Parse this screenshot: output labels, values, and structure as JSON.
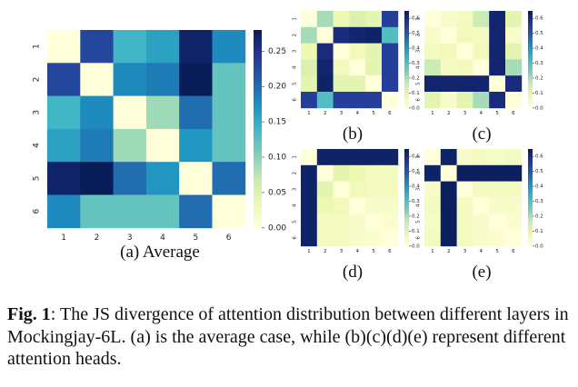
{
  "chart_data": [
    {
      "id": "a",
      "type": "heatmap",
      "title": "(a) Average",
      "rows": [
        "1",
        "2",
        "3",
        "4",
        "5",
        "6"
      ],
      "cols": [
        "1",
        "2",
        "3",
        "4",
        "5",
        "6"
      ],
      "values": [
        [
          0.0,
          0.23,
          0.14,
          0.16,
          0.27,
          0.18
        ],
        [
          0.23,
          0.0,
          0.18,
          0.19,
          0.28,
          0.12
        ],
        [
          0.14,
          0.18,
          0.0,
          0.09,
          0.2,
          0.12
        ],
        [
          0.16,
          0.19,
          0.09,
          0.0,
          0.17,
          0.12
        ],
        [
          0.27,
          0.28,
          0.2,
          0.17,
          0.0,
          0.2
        ],
        [
          0.18,
          0.12,
          0.12,
          0.12,
          0.2,
          0.0
        ]
      ],
      "vmin": 0,
      "vmax": 0.28,
      "colorbar_ticks": [
        "0.00",
        "0.05",
        "0.10",
        "0.15",
        "0.20",
        "0.25"
      ],
      "colorbar_tick_values": [
        0,
        0.05,
        0.1,
        0.15,
        0.2,
        0.25
      ]
    },
    {
      "id": "b",
      "type": "heatmap",
      "title": "(b)",
      "rows": [
        "1",
        "2",
        "3",
        "4",
        "5",
        "6"
      ],
      "cols": [
        "1",
        "2",
        "3",
        "4",
        "5",
        "6"
      ],
      "values": [
        [
          0.0,
          0.2,
          0.08,
          0.12,
          0.1,
          0.55
        ],
        [
          0.2,
          0.0,
          0.6,
          0.62,
          0.63,
          0.3
        ],
        [
          0.08,
          0.6,
          0.0,
          0.06,
          0.1,
          0.55
        ],
        [
          0.12,
          0.62,
          0.06,
          0.0,
          0.1,
          0.55
        ],
        [
          0.1,
          0.63,
          0.1,
          0.1,
          0.0,
          0.55
        ],
        [
          0.55,
          0.3,
          0.55,
          0.55,
          0.55,
          0.0
        ]
      ],
      "vmin": 0,
      "vmax": 0.65,
      "colorbar_ticks": [
        "0.0",
        "0.1",
        "0.2",
        "0.3",
        "0.4",
        "0.5",
        "0.6"
      ],
      "colorbar_tick_values": [
        0,
        0.1,
        0.2,
        0.3,
        0.4,
        0.5,
        0.6
      ]
    },
    {
      "id": "c",
      "type": "heatmap",
      "title": "(c)",
      "rows": [
        "1",
        "2",
        "3",
        "4",
        "5",
        "6"
      ],
      "cols": [
        "1",
        "2",
        "3",
        "4",
        "5",
        "6"
      ],
      "values": [
        [
          0.0,
          0.03,
          0.05,
          0.15,
          0.62,
          0.1
        ],
        [
          0.03,
          0.0,
          0.06,
          0.05,
          0.62,
          0.03
        ],
        [
          0.05,
          0.06,
          0.0,
          0.06,
          0.62,
          0.1
        ],
        [
          0.15,
          0.05,
          0.06,
          0.0,
          0.62,
          0.2
        ],
        [
          0.62,
          0.62,
          0.62,
          0.62,
          0.0,
          0.6
        ],
        [
          0.1,
          0.03,
          0.1,
          0.2,
          0.6,
          0.0
        ]
      ],
      "vmin": 0,
      "vmax": 0.65,
      "colorbar_ticks": [
        "0.0",
        "0.1",
        "0.2",
        "0.3",
        "0.4",
        "0.5",
        "0.6"
      ],
      "colorbar_tick_values": [
        0,
        0.1,
        0.2,
        0.3,
        0.4,
        0.5,
        0.6
      ]
    },
    {
      "id": "d",
      "type": "heatmap",
      "title": "(d)",
      "rows": [
        "1",
        "2",
        "3",
        "4",
        "5",
        "6"
      ],
      "cols": [
        "1",
        "2",
        "3",
        "4",
        "5",
        "6"
      ],
      "values": [
        [
          0.0,
          0.63,
          0.63,
          0.63,
          0.63,
          0.63
        ],
        [
          0.63,
          0.0,
          0.1,
          0.08,
          0.05,
          0.05
        ],
        [
          0.63,
          0.1,
          0.0,
          0.06,
          0.05,
          0.05
        ],
        [
          0.63,
          0.08,
          0.06,
          0.0,
          0.03,
          0.03
        ],
        [
          0.63,
          0.05,
          0.05,
          0.03,
          0.0,
          0.02
        ],
        [
          0.63,
          0.05,
          0.05,
          0.03,
          0.02,
          0.0
        ]
      ],
      "vmin": 0,
      "vmax": 0.65,
      "colorbar_ticks": [
        "0.0",
        "0.1",
        "0.2",
        "0.3",
        "0.4",
        "0.5",
        "0.6"
      ],
      "colorbar_tick_values": [
        0,
        0.1,
        0.2,
        0.3,
        0.4,
        0.5,
        0.6
      ]
    },
    {
      "id": "e",
      "type": "heatmap",
      "title": "(e)",
      "rows": [
        "1",
        "2",
        "3",
        "4",
        "5",
        "6"
      ],
      "cols": [
        "1",
        "2",
        "3",
        "4",
        "5",
        "6"
      ],
      "values": [
        [
          0.0,
          0.63,
          0.03,
          0.05,
          0.04,
          0.05
        ],
        [
          0.63,
          0.0,
          0.64,
          0.64,
          0.64,
          0.64
        ],
        [
          0.03,
          0.64,
          0.0,
          0.05,
          0.05,
          0.05
        ],
        [
          0.05,
          0.64,
          0.05,
          0.0,
          0.03,
          0.03
        ],
        [
          0.04,
          0.64,
          0.05,
          0.03,
          0.0,
          0.02
        ],
        [
          0.05,
          0.64,
          0.05,
          0.03,
          0.02,
          0.0
        ]
      ],
      "vmin": 0,
      "vmax": 0.65,
      "colorbar_ticks": [
        "0.0",
        "0.1",
        "0.2",
        "0.3",
        "0.4",
        "0.5",
        "0.6"
      ],
      "colorbar_tick_values": [
        0,
        0.1,
        0.2,
        0.3,
        0.4,
        0.5,
        0.6
      ]
    }
  ],
  "caption": {
    "label": "Fig. 1",
    "text": ": The JS divergence of attention distribution between different layers in Mockingjay-6L. (a) is the average case, while (b)(c)(d)(e) represent different attention heads."
  },
  "colors": {
    "colormap": [
      "#ffffd9",
      "#edf8b1",
      "#c7e9b4",
      "#7fcdbb",
      "#41b6c4",
      "#1d91c0",
      "#225ea8",
      "#253494",
      "#081d58"
    ]
  }
}
